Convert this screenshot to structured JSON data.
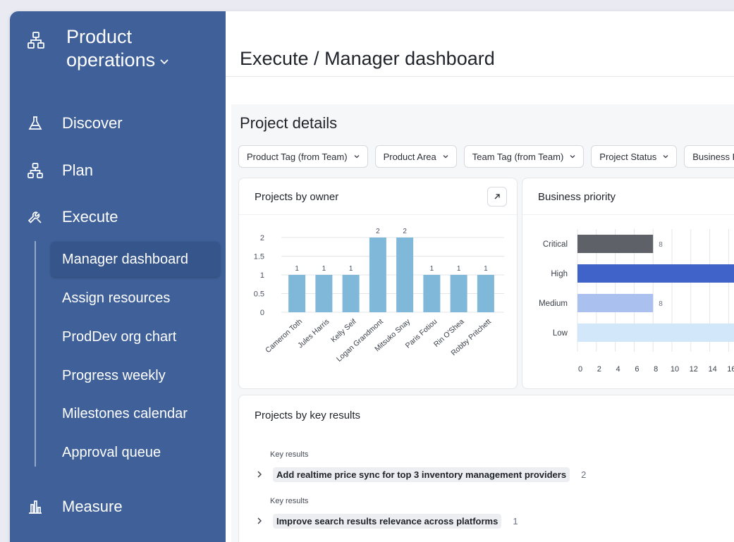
{
  "workspace": {
    "title_line1": "Product",
    "title_line2": "operations"
  },
  "nav": {
    "discover": "Discover",
    "plan": "Plan",
    "execute": "Execute",
    "measure": "Measure",
    "execute_items": [
      "Manager dashboard",
      "Assign resources",
      "ProdDev org chart",
      "Progress weekly",
      "Milestones calendar",
      "Approval queue"
    ],
    "active_item": "Manager dashboard"
  },
  "page": {
    "title": "Execute / Manager dashboard"
  },
  "section": {
    "title": "Project details"
  },
  "filters": [
    "Product Tag (from Team)",
    "Product Area",
    "Team Tag (from Team)",
    "Project Status",
    "Business P"
  ],
  "cards": {
    "owner_title": "Projects by owner",
    "priority_title": "Business priority",
    "keyresults_title": "Projects by key results"
  },
  "chart_data": [
    {
      "type": "bar",
      "title": "Projects by owner",
      "categories": [
        "Cameron Toth",
        "Jules Harris",
        "Kelly Seif",
        "Logan Grandmont",
        "Mitsuko Snay",
        "Paris Fotiou",
        "Rin O'Shea",
        "Robby Pritchett"
      ],
      "values": [
        1,
        1,
        1,
        2,
        2,
        1,
        1,
        1
      ],
      "ylim": [
        0,
        2
      ],
      "yticks": [
        "0",
        "0.5",
        "1",
        "1.5",
        "2"
      ],
      "color": "#7fb8d8",
      "grid": true
    },
    {
      "type": "bar",
      "orientation": "horizontal",
      "title": "Business priority",
      "categories": [
        "Critical",
        "High",
        "Medium",
        "Low"
      ],
      "values": [
        8,
        17,
        8,
        17
      ],
      "value_labels": [
        "8",
        "",
        "8",
        ""
      ],
      "colors": [
        "#5f6168",
        "#3f63c8",
        "#aac0ee",
        "#d3e7fa"
      ],
      "xticks": [
        "0",
        "2",
        "4",
        "6",
        "8",
        "10",
        "12",
        "14",
        "16"
      ],
      "grid": true
    }
  ],
  "key_results": {
    "header": "Key results",
    "rows": [
      {
        "label": "Add realtime price sync for top 3 inventory management providers",
        "count": "2"
      },
      {
        "label": "Improve search results relevance across platforms",
        "count": "1"
      }
    ]
  },
  "colors": {
    "sidebar": "#3f6099",
    "sidebar_active": "#35558b",
    "accent_bar": "#7fb8d8"
  }
}
